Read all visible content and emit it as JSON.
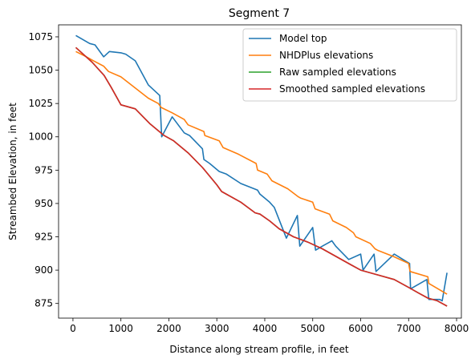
{
  "chart_data": {
    "type": "line",
    "title": "Segment 7",
    "xlabel": "Distance along stream profile, in feet",
    "ylabel": "Streambed Elevation, in feet",
    "xlim": [
      -300,
      8100
    ],
    "ylim": [
      864,
      1084
    ],
    "xticks": [
      0,
      1000,
      2000,
      3000,
      4000,
      5000,
      6000,
      7000,
      8000
    ],
    "yticks": [
      875,
      900,
      925,
      950,
      975,
      1000,
      1025,
      1050,
      1075
    ],
    "legend_position": "upper right",
    "series": [
      {
        "name": "Model top",
        "color": "#1f77b4",
        "x": [
          60,
          350,
          460,
          640,
          760,
          1000,
          1100,
          1300,
          1570,
          1810,
          1850,
          2070,
          2320,
          2430,
          2700,
          2730,
          2850,
          3050,
          3200,
          3500,
          3850,
          3900,
          4100,
          4200,
          4450,
          4680,
          4730,
          5000,
          5060,
          5200,
          5350,
          5400,
          5480,
          5750,
          6000,
          6050,
          6280,
          6320,
          6700,
          7020,
          7040,
          7380,
          7420,
          7650,
          7700,
          7800
        ],
        "y": [
          1076,
          1070,
          1069,
          1060,
          1064,
          1063,
          1062,
          1057,
          1039,
          1031,
          1000,
          1015,
          1003,
          1001,
          991,
          983,
          980,
          974,
          972,
          965,
          960,
          957,
          951,
          947,
          924,
          941,
          918,
          932,
          915,
          918,
          921,
          922,
          918,
          908,
          912,
          900,
          912,
          899,
          912,
          905,
          886,
          893,
          878,
          878,
          877,
          898
        ]
      },
      {
        "name": "NHDPlus elevations",
        "color": "#ff7f0e",
        "x": [
          60,
          280,
          430,
          640,
          740,
          1000,
          1570,
          1780,
          1840,
          2070,
          2320,
          2400,
          2730,
          2750,
          3050,
          3130,
          3450,
          3820,
          3850,
          4050,
          4150,
          4480,
          4700,
          4750,
          5000,
          5050,
          5350,
          5420,
          5700,
          5850,
          5900,
          6200,
          6300,
          6350,
          6700,
          7000,
          7030,
          7400,
          7420,
          7800
        ],
        "y": [
          1064,
          1060,
          1057,
          1053,
          1049,
          1045,
          1029,
          1025,
          1022,
          1018,
          1013,
          1009,
          1004,
          1001,
          997,
          992,
          987,
          980,
          975,
          972,
          967,
          961,
          955,
          954,
          951,
          946,
          942,
          937,
          932,
          928,
          925,
          920,
          916,
          915,
          910,
          905,
          899,
          895,
          890,
          882
        ]
      },
      {
        "name": "Raw sampled elevations",
        "color": "#2ca02c",
        "x": [
          60,
          400,
          650,
          800,
          1000,
          1300,
          1600,
          1900,
          2100,
          2400,
          2700,
          3000,
          3100,
          3500,
          3800,
          3900,
          4100,
          4300,
          4600,
          4900,
          5200,
          5500,
          5800,
          6000,
          6300,
          6700,
          7000,
          7200,
          7400,
          7600,
          7800
        ],
        "y": [
          1067,
          1056,
          1046,
          1037,
          1024,
          1021,
          1010,
          1001,
          997,
          988,
          977,
          964,
          959,
          951,
          943,
          942,
          937,
          931,
          925,
          921,
          916,
          910,
          904,
          900,
          897,
          893,
          887,
          883,
          879,
          877,
          873
        ]
      },
      {
        "name": "Smoothed sampled elevations",
        "color": "#d62728",
        "x": [
          60,
          400,
          650,
          800,
          1000,
          1300,
          1600,
          1900,
          2100,
          2400,
          2700,
          3000,
          3100,
          3500,
          3800,
          3900,
          4100,
          4300,
          4600,
          4900,
          5200,
          5500,
          5800,
          6000,
          6300,
          6700,
          7000,
          7200,
          7400,
          7600,
          7800
        ],
        "y": [
          1067,
          1056,
          1046,
          1037,
          1024,
          1021,
          1010,
          1001,
          997,
          988,
          977,
          964,
          959,
          951,
          943,
          942,
          937,
          931,
          925,
          921,
          916,
          910,
          904,
          900,
          897,
          893,
          887,
          883,
          879,
          877,
          873
        ]
      }
    ]
  }
}
